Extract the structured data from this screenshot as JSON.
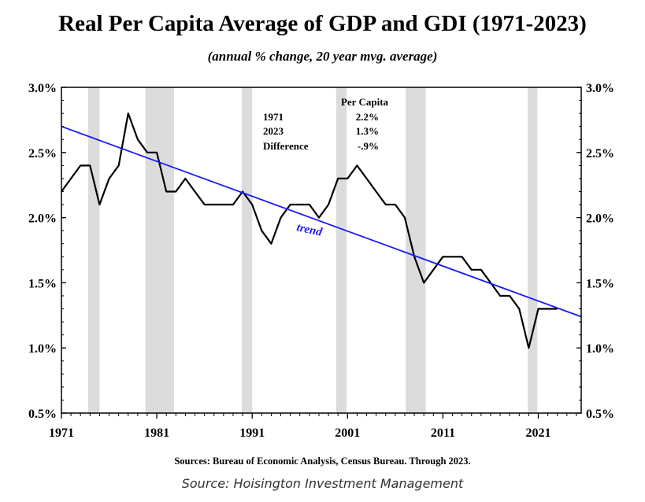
{
  "title": "Real Per Capita Average of GDP and GDI (1971-2023)",
  "subtitle": "(annual % change, 20 year mvg. average)",
  "sources": "Sources: Bureau of Economic Analysis, Census Bureau. Through 2023.",
  "source_credit": "Source: Hoisington Investment Management",
  "chart_data": {
    "type": "line",
    "title": "Real Per Capita Average of GDP and GDI (1971-2023)",
    "subtitle": "(annual % change, 20 year mvg. average)",
    "xlim": [
      1971,
      2025.5
    ],
    "ylim": [
      0.5,
      3.0
    ],
    "x_ticks": [
      1971,
      1981,
      1991,
      2001,
      2011,
      2021
    ],
    "y_ticks": [
      0.5,
      1.0,
      1.5,
      2.0,
      2.5,
      3.0
    ],
    "y_tick_labels": [
      "0.5%",
      "1.0%",
      "1.5%",
      "2.0%",
      "2.5%",
      "3.0%"
    ],
    "y_axes": [
      "left",
      "right"
    ],
    "grid": false,
    "series": [
      {
        "color": "#000000",
        "x": [
          1971,
          1972,
          1973,
          1974,
          1975,
          1976,
          1977,
          1978,
          1979,
          1980,
          1981,
          1982,
          1983,
          1984,
          1985,
          1986,
          1987,
          1988,
          1989,
          1990,
          1991,
          1992,
          1993,
          1994,
          1995,
          1996,
          1997,
          1998,
          1999,
          2000,
          2001,
          2002,
          2003,
          2004,
          2005,
          2006,
          2007,
          2008,
          2009,
          2010,
          2011,
          2012,
          2013,
          2014,
          2015,
          2016,
          2017,
          2018,
          2019,
          2020,
          2021,
          2022,
          2023
        ],
        "values": [
          2.2,
          2.3,
          2.4,
          2.4,
          2.1,
          2.3,
          2.4,
          2.8,
          2.6,
          2.5,
          2.5,
          2.2,
          2.2,
          2.3,
          2.2,
          2.1,
          2.1,
          2.1,
          2.1,
          2.2,
          2.1,
          1.9,
          1.8,
          2.0,
          2.1,
          2.1,
          2.1,
          2.0,
          2.1,
          2.3,
          2.3,
          2.4,
          2.3,
          2.2,
          2.1,
          2.1,
          2.0,
          1.7,
          1.5,
          1.6,
          1.7,
          1.7,
          1.7,
          1.6,
          1.6,
          1.5,
          1.4,
          1.4,
          1.3,
          1.0,
          1.3,
          1.3,
          1.3
        ]
      },
      {
        "name": "trend",
        "color": "#1a1aff",
        "x": [
          1971,
          2025.5
        ],
        "values": [
          2.7,
          1.24
        ]
      }
    ],
    "recession_shading": [
      [
        1973.8,
        1975.0
      ],
      [
        1979.8,
        1982.8
      ],
      [
        1989.9,
        1991.0
      ],
      [
        1999.8,
        2000.9
      ],
      [
        2007.1,
        2009.2
      ],
      [
        2019.9,
        2020.9
      ]
    ],
    "shading_color": "#dcdcdc",
    "annotation": {
      "header": "Per Capita",
      "rows": [
        {
          "label": "1971",
          "value": "2.2%"
        },
        {
          "label": "2023",
          "value": "1.3%"
        },
        {
          "label": "Difference",
          "value": "-.9%"
        }
      ]
    },
    "trend_label": "trend"
  }
}
